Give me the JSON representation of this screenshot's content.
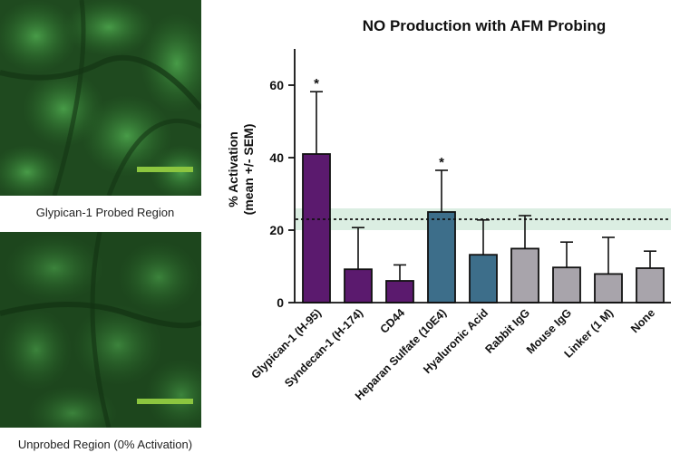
{
  "panels": [
    {
      "caption": "Glypican-1 Probed Region"
    },
    {
      "caption": "Unprobed Region (0% Activation)"
    }
  ],
  "colors": {
    "purple": "#5b1a6e",
    "teal": "#3d6e8a",
    "gray": "#a8a4ab",
    "band": "#cfe8d8",
    "scale_bar": "#8cc63f",
    "micro_bg": "#1f4a1f"
  },
  "chart_data": {
    "type": "bar",
    "title": "NO  Production with AFM  Probing",
    "ylabel_line1": "% Activation",
    "ylabel_line2": "(mean +/- SEM)",
    "ylim": [
      0,
      70
    ],
    "yticks": [
      0,
      20,
      40,
      60
    ],
    "categories": [
      "Glypican-1 (H-95)",
      "Syndecan-1 (H-174)",
      "CD44",
      "Heparan Sulfate (10E4)",
      "Hyaluronic Acid",
      "Rabbit IgG",
      "Mouse IgG",
      "Linker (1 M)",
      "None"
    ],
    "values": [
      41,
      9.2,
      6,
      25,
      13.2,
      14.9,
      9.7,
      7.9,
      9.5
    ],
    "errors": [
      17.2,
      11.5,
      4.4,
      11.5,
      9.6,
      9.1,
      7,
      10.1,
      4.7
    ],
    "groups": [
      "purple",
      "purple",
      "purple",
      "teal",
      "teal",
      "gray",
      "gray",
      "gray",
      "gray"
    ],
    "significance": [
      "*",
      "",
      "",
      "*",
      "",
      "",
      "",
      "",
      ""
    ],
    "reference_line": 23,
    "reference_band": [
      20,
      26
    ],
    "grid": false
  }
}
